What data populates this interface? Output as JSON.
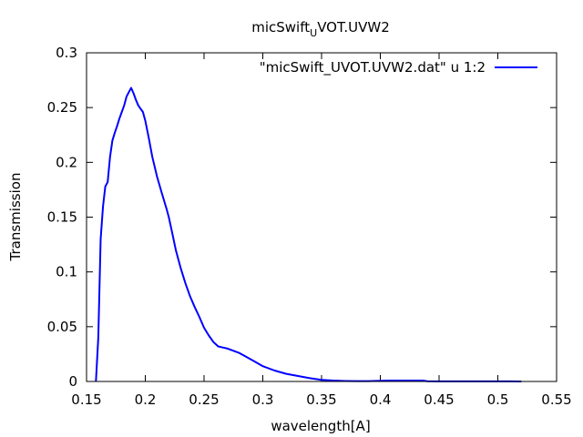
{
  "chart_data": {
    "type": "line",
    "title": {
      "main": "micSwift",
      "subscript": "U",
      "rest": "VOT.UVW2"
    },
    "xlabel": "wavelength[A]",
    "ylabel": "Transmission",
    "xlim": [
      0.15,
      0.55
    ],
    "ylim": [
      0,
      0.3
    ],
    "xticks": [
      {
        "value": 0.15,
        "label": "0.15"
      },
      {
        "value": 0.2,
        "label": "0.2"
      },
      {
        "value": 0.25,
        "label": "0.25"
      },
      {
        "value": 0.3,
        "label": "0.3"
      },
      {
        "value": 0.35,
        "label": "0.35"
      },
      {
        "value": 0.4,
        "label": "0.4"
      },
      {
        "value": 0.45,
        "label": "0.45"
      },
      {
        "value": 0.5,
        "label": "0.5"
      },
      {
        "value": 0.55,
        "label": "0.55"
      }
    ],
    "yticks": [
      {
        "value": 0,
        "label": "0"
      },
      {
        "value": 0.05,
        "label": "0.05"
      },
      {
        "value": 0.1,
        "label": "0.1"
      },
      {
        "value": 0.15,
        "label": "0.15"
      },
      {
        "value": 0.2,
        "label": "0.2"
      },
      {
        "value": 0.25,
        "label": "0.25"
      },
      {
        "value": 0.3,
        "label": "0.3"
      }
    ],
    "grid": false,
    "legend_position": "top-right",
    "series": [
      {
        "name": "\"micSwift_UVOT.UVW2.dat\" u 1:2",
        "color": "#0000ff",
        "x": [
          0.158,
          0.16,
          0.162,
          0.164,
          0.166,
          0.168,
          0.17,
          0.172,
          0.174,
          0.176,
          0.178,
          0.18,
          0.182,
          0.184,
          0.186,
          0.188,
          0.19,
          0.192,
          0.194,
          0.196,
          0.198,
          0.2,
          0.203,
          0.206,
          0.21,
          0.214,
          0.218,
          0.22,
          0.223,
          0.226,
          0.23,
          0.234,
          0.238,
          0.242,
          0.246,
          0.25,
          0.254,
          0.258,
          0.262,
          0.266,
          0.27,
          0.275,
          0.28,
          0.285,
          0.29,
          0.295,
          0.3,
          0.31,
          0.32,
          0.33,
          0.34,
          0.35,
          0.36,
          0.37,
          0.38,
          0.39,
          0.4,
          0.41,
          0.42,
          0.43,
          0.436,
          0.44,
          0.45,
          0.46,
          0.47,
          0.48,
          0.49,
          0.5,
          0.51,
          0.52
        ],
        "y": [
          0.0,
          0.04,
          0.13,
          0.16,
          0.178,
          0.182,
          0.205,
          0.22,
          0.227,
          0.233,
          0.24,
          0.246,
          0.252,
          0.26,
          0.264,
          0.268,
          0.263,
          0.257,
          0.252,
          0.249,
          0.246,
          0.238,
          0.222,
          0.205,
          0.187,
          0.172,
          0.158,
          0.15,
          0.135,
          0.12,
          0.104,
          0.09,
          0.078,
          0.068,
          0.059,
          0.049,
          0.042,
          0.036,
          0.032,
          0.031,
          0.03,
          0.028,
          0.026,
          0.023,
          0.02,
          0.017,
          0.014,
          0.01,
          0.007,
          0.005,
          0.003,
          0.0015,
          0.0008,
          0.0004,
          0.0003,
          0.0003,
          0.0006,
          0.0008,
          0.0008,
          0.0008,
          0.0008,
          0.0002,
          0.0001,
          0.0001,
          0.0001,
          0.0001,
          0.0001,
          0.0001,
          0.0001,
          0.0
        ]
      }
    ]
  }
}
